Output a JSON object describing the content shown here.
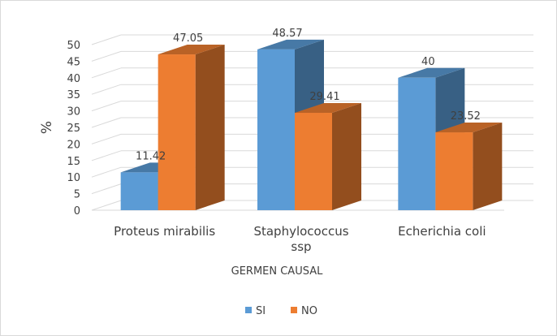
{
  "chart_data": {
    "type": "bar",
    "three_d": true,
    "categories": [
      [
        "Proteus mirabilis"
      ],
      [
        "Staphylococcus",
        "ssp"
      ],
      [
        "Echerichia coli"
      ]
    ],
    "series": [
      {
        "name": "SI",
        "color": "#5b9bd5",
        "values": [
          11.42,
          48.57,
          40
        ],
        "labels": [
          "11.42",
          "48.57",
          "40"
        ]
      },
      {
        "name": "NO",
        "color": "#ed7d31",
        "values": [
          47.05,
          29.41,
          23.52
        ],
        "labels": [
          "47.05",
          "29.41",
          "23.52"
        ]
      }
    ],
    "xlabel": "GERMEN CAUSAL",
    "ylabel": "%",
    "ylim": [
      0,
      50
    ],
    "yticks": [
      "0",
      "5",
      "10",
      "15",
      "20",
      "25",
      "30",
      "35",
      "40",
      "45",
      "50"
    ],
    "grid": true,
    "legend": "bottom"
  }
}
